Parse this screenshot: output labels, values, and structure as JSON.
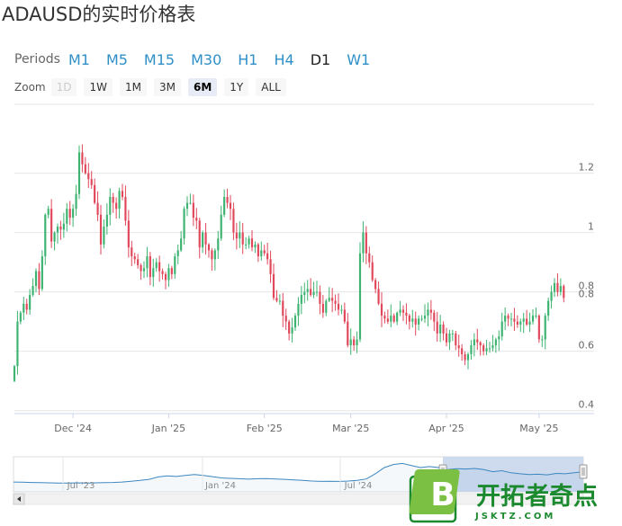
{
  "title": "ADAUSD的实时价格表",
  "periods": {
    "label": "Periods",
    "items": [
      "M1",
      "M5",
      "M15",
      "M30",
      "H1",
      "H4",
      "D1",
      "W1"
    ],
    "active": "D1"
  },
  "zoom": {
    "label": "Zoom",
    "items": [
      "1D",
      "1W",
      "1M",
      "3M",
      "6M",
      "1Y",
      "ALL"
    ],
    "disabled": "1D",
    "active": "6M"
  },
  "colors": {
    "up": "#3cb371",
    "down": "#e0475b",
    "grid": "#e6e6e6",
    "nav_line": "#3d87c0",
    "nav_selection": "#c9d6ec"
  },
  "chart_data": [
    {
      "type": "candlestick",
      "symbol": "ADAUSD",
      "x_tick_labels": [
        "Dec '24",
        "Jan '25",
        "Feb '25",
        "Mar '25",
        "Apr '25",
        "May '25"
      ],
      "y_ticks": [
        0.4,
        0.6,
        0.8,
        1,
        1.2
      ],
      "y_tick_labels": [
        "0.4",
        "0.6",
        "0.8",
        "1",
        "1.2"
      ],
      "ylim": [
        0.39,
        1.42
      ],
      "grid": true,
      "y_axis_side": "right",
      "x_start": "2024-11-12",
      "x_end": "2025-05-13",
      "close": [
        0.55,
        0.7,
        0.73,
        0.76,
        0.74,
        0.79,
        0.82,
        0.87,
        0.81,
        0.92,
        1.06,
        1.08,
        0.97,
        1.0,
        1.02,
        1.01,
        1.03,
        1.08,
        1.05,
        1.08,
        1.13,
        1.27,
        1.23,
        1.2,
        1.18,
        1.16,
        1.1,
        1.06,
        0.96,
        1.02,
        1.06,
        1.12,
        1.1,
        1.08,
        1.14,
        1.12,
        1.04,
        0.95,
        0.92,
        0.91,
        0.89,
        0.87,
        0.88,
        0.92,
        0.85,
        0.88,
        0.9,
        0.87,
        0.86,
        0.84,
        0.88,
        0.86,
        0.92,
        0.94,
        0.98,
        1.08,
        1.1,
        1.1,
        1.05,
        1.04,
        0.95,
        1.0,
        0.96,
        0.94,
        0.91,
        0.94,
        0.98,
        1.06,
        1.12,
        1.1,
        1.08,
        1.0,
        0.98,
        1.0,
        0.96,
        0.96,
        0.98,
        0.95,
        0.96,
        0.92,
        0.94,
        0.93,
        0.91,
        0.86,
        0.78,
        0.77,
        0.77,
        0.72,
        0.7,
        0.66,
        0.68,
        0.72,
        0.76,
        0.79,
        0.8,
        0.81,
        0.79,
        0.8,
        0.8,
        0.76,
        0.73,
        0.77,
        0.78,
        0.77,
        0.76,
        0.74,
        0.74,
        0.7,
        0.62,
        0.64,
        0.62,
        0.64,
        0.93,
        1.0,
        0.93,
        0.9,
        0.84,
        0.81,
        0.76,
        0.72,
        0.71,
        0.7,
        0.72,
        0.7,
        0.73,
        0.74,
        0.73,
        0.72,
        0.7,
        0.71,
        0.69,
        0.71,
        0.71,
        0.72,
        0.74,
        0.73,
        0.7,
        0.66,
        0.69,
        0.66,
        0.63,
        0.66,
        0.66,
        0.62,
        0.61,
        0.59,
        0.57,
        0.59,
        0.62,
        0.64,
        0.63,
        0.62,
        0.6,
        0.61,
        0.61,
        0.62,
        0.64,
        0.65,
        0.7,
        0.72,
        0.71,
        0.71,
        0.7,
        0.69,
        0.7,
        0.71,
        0.69,
        0.7,
        0.72,
        0.72,
        0.64,
        0.64,
        0.72,
        0.77,
        0.8,
        0.83,
        0.8,
        0.82,
        0.78
      ],
      "last_price_label": "0.8"
    },
    {
      "type": "area",
      "role": "navigator",
      "x_tick_labels": [
        "Jul '23",
        "Jan '24",
        "Jul '24"
      ],
      "values": [
        0.3,
        0.29,
        0.28,
        0.27,
        0.26,
        0.25,
        0.25,
        0.26,
        0.25,
        0.26,
        0.27,
        0.28,
        0.3,
        0.34,
        0.38,
        0.43,
        0.55,
        0.6,
        0.57,
        0.62,
        0.66,
        0.62,
        0.56,
        0.5,
        0.48,
        0.46,
        0.44,
        0.46,
        0.47,
        0.45,
        0.43,
        0.4,
        0.38,
        0.35,
        0.33,
        0.34,
        0.33,
        0.35,
        0.38,
        0.45,
        0.7,
        1.0,
        1.15,
        1.2,
        1.1,
        1.0,
        1.05,
        1.0,
        0.9,
        0.95,
        0.93,
        0.96,
        0.9,
        0.8,
        0.85,
        0.75,
        0.7,
        0.66,
        0.68,
        0.65,
        0.72,
        0.7,
        0.75,
        0.8
      ]
    }
  ],
  "watermark": {
    "logo_letter": "B",
    "text": "开拓者奇点",
    "url": "JSKTZ.COM"
  }
}
